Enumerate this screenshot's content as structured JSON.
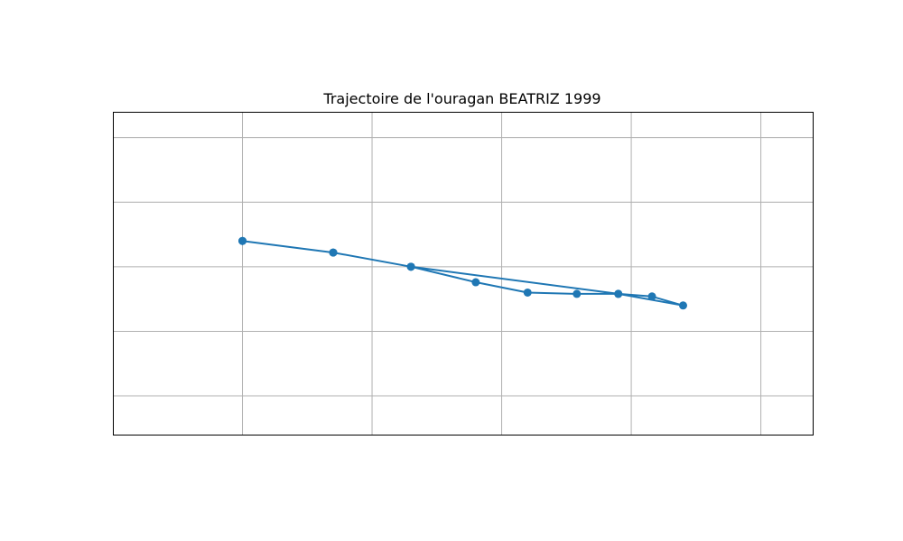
{
  "chart_data": {
    "type": "line",
    "title": "Trajectoire de l'ouragan BEATRIZ 1999",
    "xlabel": "",
    "ylabel": "",
    "xlim": [
      -2.0,
      0.7
    ],
    "ylim": [
      -1.5,
      1.0
    ],
    "grid": true,
    "x_gridlines": [
      -1.5,
      -1.0,
      -0.5,
      0.0,
      0.5
    ],
    "y_gridlines": [
      -1.2,
      -0.7,
      -0.2,
      0.3,
      0.8
    ],
    "series": [
      {
        "x": [
          -1.5,
          -1.15,
          -0.85,
          -0.6,
          -0.4,
          -0.21,
          -0.05,
          0.08,
          0.2,
          -0.05,
          -0.85,
          -1.15,
          -1.5
        ],
        "y": [
          0.0,
          -0.09,
          -0.2,
          -0.32,
          -0.4,
          -0.41,
          -0.41,
          -0.43,
          -0.5,
          -0.41,
          -0.2,
          -0.09,
          0.0
        ],
        "color": "#1f77b4",
        "marker": "circle"
      }
    ]
  }
}
